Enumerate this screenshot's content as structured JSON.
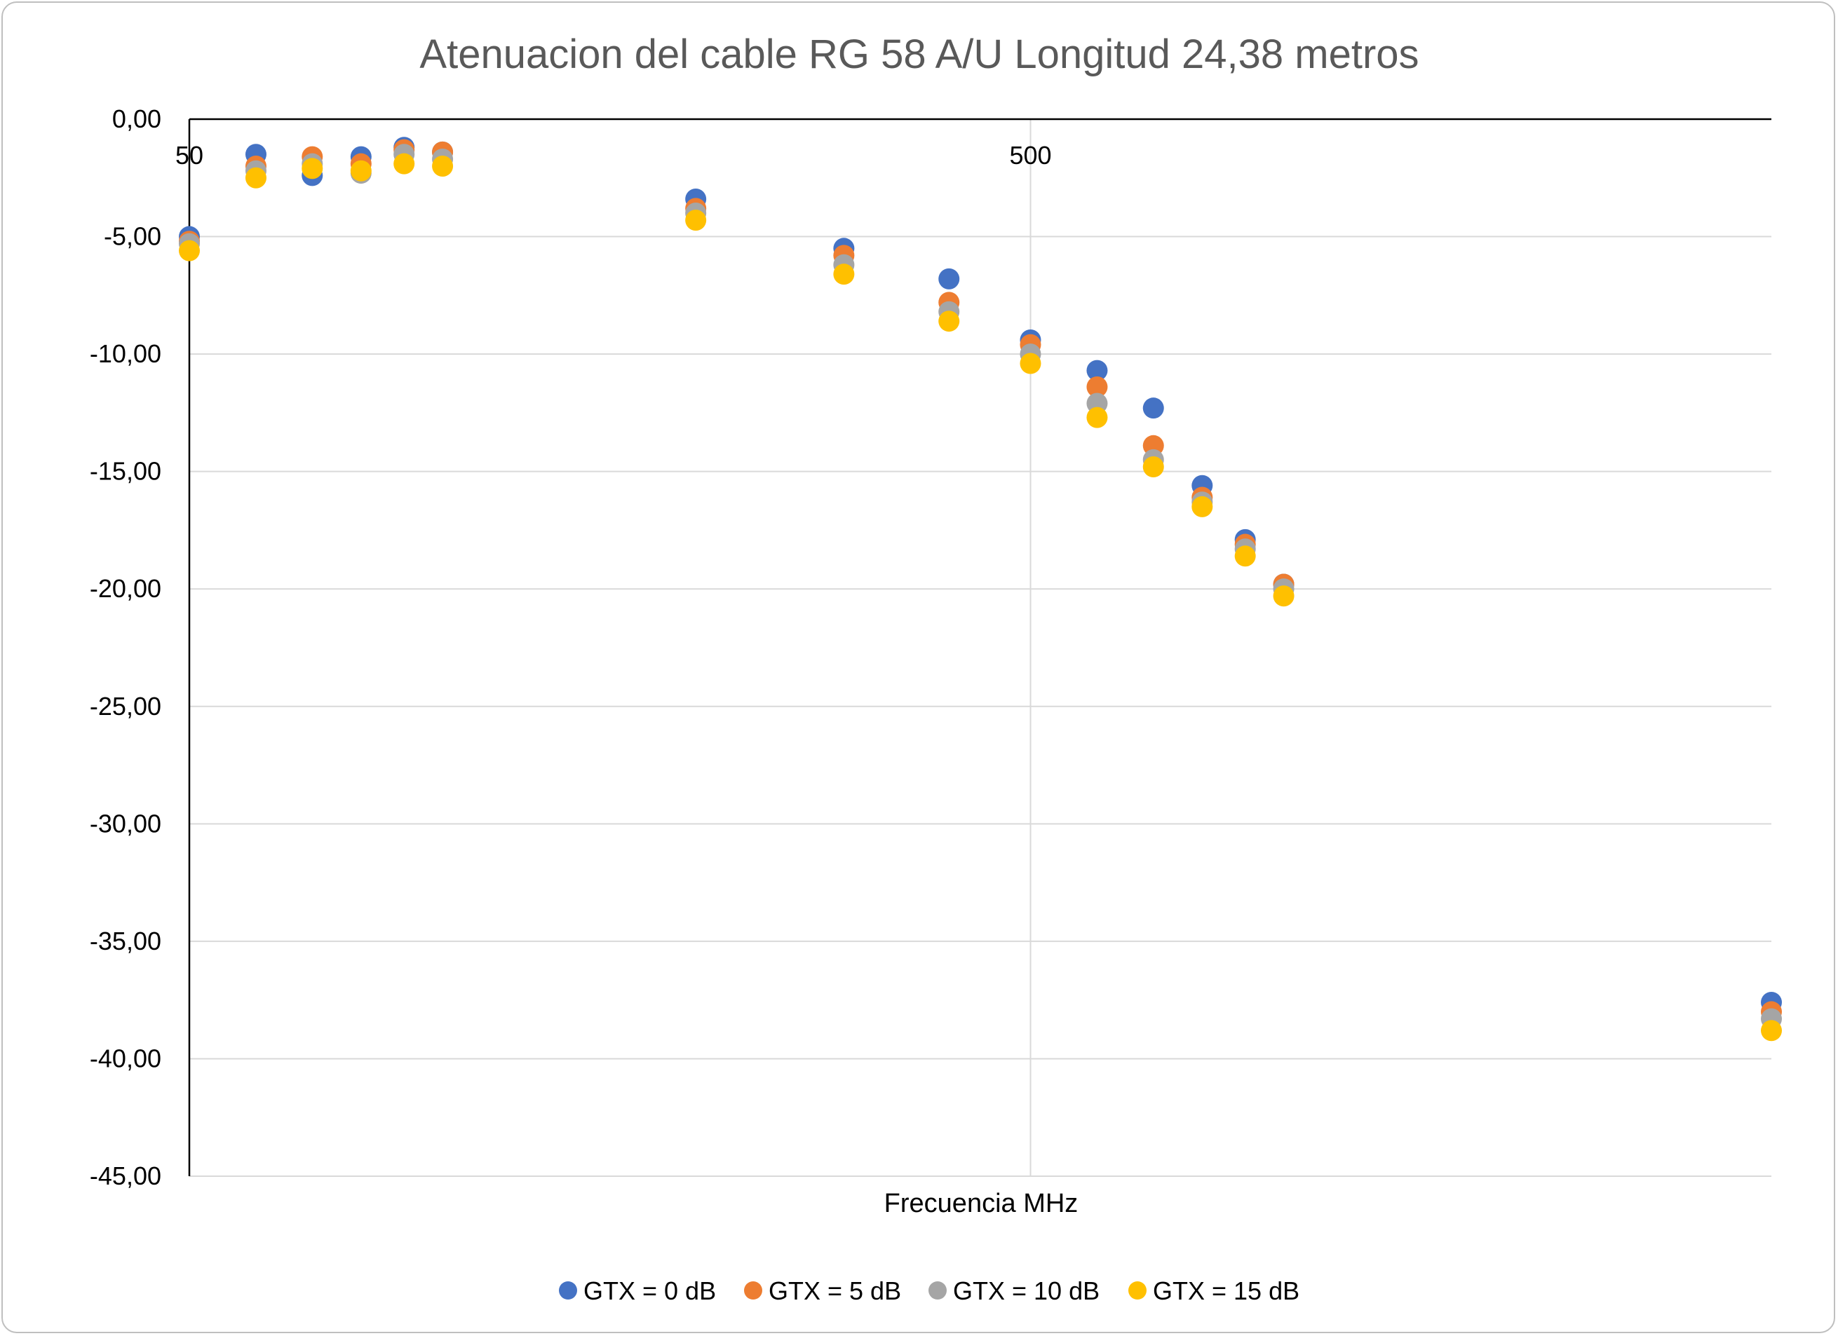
{
  "chart_data": {
    "type": "scatter",
    "title": "Atenuacion del cable RG 58 A/U Longitud 24,38 metros",
    "xlabel": "Frecuencia MHz",
    "ylabel": "",
    "x_scale": "log",
    "x_range": [
      50,
      3800
    ],
    "x_ticks": [
      50,
      500
    ],
    "x_tick_labels": [
      "50",
      "500"
    ],
    "ylim": [
      -45,
      0
    ],
    "y_ticks": [
      0,
      -5,
      -10,
      -15,
      -20,
      -25,
      -30,
      -35,
      -40,
      -45
    ],
    "y_tick_labels": [
      "0,00",
      "-5,00",
      "-10,00",
      "-15,00",
      "-20,00",
      "-25,00",
      "-30,00",
      "-35,00",
      "-40,00",
      "-45,00"
    ],
    "grid": true,
    "legend_position": "bottom",
    "x": [
      50,
      60,
      70,
      80,
      90,
      100,
      200,
      300,
      400,
      500,
      600,
      700,
      800,
      900,
      1000,
      3800
    ],
    "series": [
      {
        "name": "GTX = 0 dB",
        "color": "#4472C4",
        "values": [
          -5.0,
          -1.5,
          -2.4,
          -1.6,
          -1.2,
          -1.4,
          -3.4,
          -5.5,
          -6.8,
          -9.4,
          -10.7,
          -12.3,
          -15.6,
          -17.9,
          -19.8,
          -37.6
        ]
      },
      {
        "name": "GTX = 5 dB",
        "color": "#ED7D31",
        "values": [
          -5.2,
          -2.0,
          -1.6,
          -1.9,
          -1.3,
          -1.4,
          -3.8,
          -5.8,
          -7.8,
          -9.6,
          -11.4,
          -13.9,
          -16.1,
          -18.1,
          -19.8,
          -38.0
        ]
      },
      {
        "name": "GTX = 10 dB",
        "color": "#A5A5A5",
        "values": [
          -5.3,
          -2.2,
          -1.9,
          -2.3,
          -1.5,
          -1.7,
          -4.0,
          -6.2,
          -8.2,
          -10.0,
          -12.1,
          -14.5,
          -16.3,
          -18.3,
          -20.0,
          -38.3
        ]
      },
      {
        "name": "GTX = 15 dB",
        "color": "#FFC000",
        "values": [
          -5.6,
          -2.5,
          -2.1,
          -2.2,
          -1.9,
          -2.0,
          -4.3,
          -6.6,
          -8.6,
          -10.4,
          -12.7,
          -14.8,
          -16.5,
          -18.6,
          -20.3,
          -38.8
        ]
      }
    ]
  }
}
